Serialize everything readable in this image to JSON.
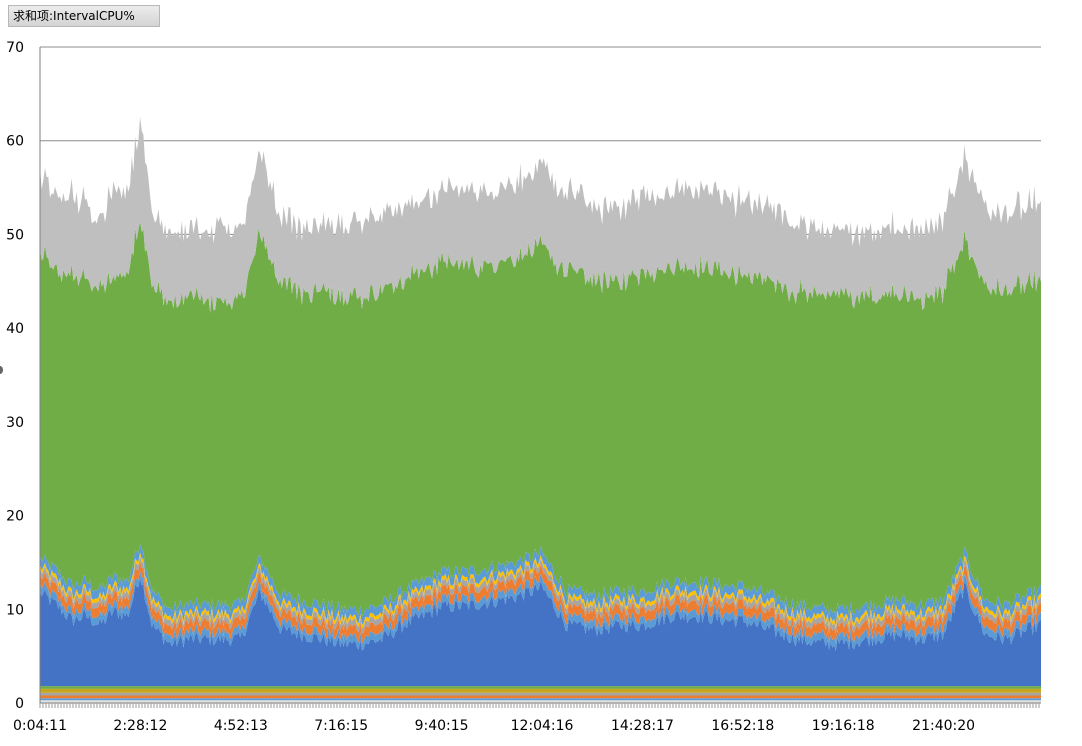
{
  "field_button": {
    "label": "求和项:IntervalCPU%"
  },
  "chart_data": {
    "type": "area",
    "stacked": true,
    "ylim": [
      0,
      70
    ],
    "y_ticks": [
      0,
      10,
      20,
      30,
      40,
      50,
      60,
      70
    ],
    "x_tick_labels": [
      "0:04:11",
      "2:28:12",
      "4:52:13",
      "7:16:15",
      "9:40:15",
      "12:04:16",
      "14:28:17",
      "16:52:18",
      "19:16:18",
      "21:40:20"
    ],
    "grid": {
      "horizontal": true,
      "vertical": false
    },
    "legend": "none",
    "x_start": "0:04:11",
    "x_end": "24:00:00",
    "series": [
      {
        "color": "#E2E2E2",
        "x": [
          "0:04:11",
          "23:58:00"
        ],
        "values": [
          0.3,
          0.3
        ]
      },
      {
        "color": "#5B9BD5",
        "x": [
          "0:04:11",
          "23:58:00"
        ],
        "values": [
          0.2,
          0.2
        ]
      },
      {
        "color": "#ED7D31",
        "x": [
          "0:04:11",
          "23:58:00"
        ],
        "values": [
          0.3,
          0.3
        ]
      },
      {
        "color": "#A5A5A5",
        "x": [
          "0:04:11",
          "23:58:00"
        ],
        "values": [
          0.3,
          0.3
        ]
      },
      {
        "color": "#C8A51E",
        "x": [
          "0:04:11",
          "23:58:00"
        ],
        "values": [
          0.4,
          0.4
        ]
      },
      {
        "color": "#70AD47",
        "x": [
          "0:04:11",
          "23:58:00"
        ],
        "values": [
          0.3,
          0.3
        ]
      },
      {
        "color": "#4472C4",
        "x": [
          "0:04:11",
          "0:30:00",
          "0:50:00",
          "1:10:00",
          "1:30:00",
          "1:50:00",
          "2:10:00",
          "2:28:12",
          "2:45:00",
          "3:10:00",
          "3:35:00",
          "4:00:00",
          "4:25:00",
          "4:52:13",
          "5:20:00",
          "5:50:00",
          "6:20:00",
          "6:50:00",
          "7:16:15",
          "7:45:00",
          "8:15:00",
          "8:45:00",
          "9:15:00",
          "9:40:15",
          "10:15:00",
          "10:50:00",
          "11:25:00",
          "12:04:16",
          "12:40:00",
          "13:20:00",
          "14:00:00",
          "14:28:17",
          "15:10:00",
          "15:50:00",
          "16:30:00",
          "16:52:18",
          "17:30:00",
          "18:10:00",
          "18:50:00",
          "19:16:18",
          "19:55:00",
          "20:35:00",
          "21:10:00",
          "21:40:20",
          "22:10:00",
          "22:40:00",
          "23:10:00",
          "23:58:00"
        ],
        "values": [
          10.0,
          8.5,
          7.0,
          7.5,
          6.5,
          8.0,
          7.5,
          12.0,
          6.5,
          4.5,
          5.0,
          5.0,
          5.0,
          5.0,
          10.0,
          6.0,
          5.5,
          5.0,
          4.5,
          4.5,
          5.0,
          6.5,
          7.5,
          8.5,
          8.5,
          9.0,
          9.5,
          10.5,
          6.5,
          6.0,
          6.5,
          6.5,
          7.5,
          7.5,
          7.0,
          7.0,
          6.0,
          5.0,
          4.5,
          4.5,
          5.0,
          5.5,
          5.0,
          5.5,
          10.5,
          5.5,
          5.0,
          6.5
        ]
      },
      {
        "color": "#5B9BD5",
        "x": [
          "0:04:11",
          "23:58:00"
        ],
        "values": [
          0.8,
          0.8
        ]
      },
      {
        "color": "#ED7D31",
        "x": [
          "0:04:11",
          "23:58:00"
        ],
        "values": [
          1.0,
          1.0
        ]
      },
      {
        "color": "#A5A5A5",
        "x": [
          "0:04:11",
          "23:58:00"
        ],
        "values": [
          0.6,
          0.6
        ]
      },
      {
        "color": "#FFC000",
        "x": [
          "0:04:11",
          "23:58:00"
        ],
        "values": [
          0.4,
          0.4
        ]
      },
      {
        "color": "#5B9BD5",
        "x": [
          "0:04:11",
          "23:58:00"
        ],
        "values": [
          0.9,
          0.9
        ]
      },
      {
        "color": "#70AD47",
        "x": [
          "0:04:11",
          "0:30:00",
          "0:50:00",
          "1:10:00",
          "1:30:00",
          "1:50:00",
          "2:10:00",
          "2:28:12",
          "2:45:00",
          "3:10:00",
          "3:35:00",
          "4:00:00",
          "4:25:00",
          "4:52:13",
          "5:20:00",
          "5:50:00",
          "6:20:00",
          "6:50:00",
          "7:16:15",
          "7:45:00",
          "8:15:00",
          "8:45:00",
          "9:15:00",
          "9:40:15",
          "10:15:00",
          "10:50:00",
          "11:25:00",
          "12:04:16",
          "12:40:00",
          "13:20:00",
          "14:00:00",
          "14:28:17",
          "15:10:00",
          "15:50:00",
          "16:30:00",
          "16:52:18",
          "17:30:00",
          "18:10:00",
          "18:50:00",
          "19:16:18",
          "19:55:00",
          "20:35:00",
          "21:10:00",
          "21:40:20",
          "22:10:00",
          "22:40:00",
          "23:10:00",
          "23:58:00"
        ],
        "values": [
          32.5,
          31.5,
          33.0,
          32.0,
          32.5,
          31.5,
          33.0,
          34.0,
          33.0,
          32.5,
          32.5,
          32.5,
          32.5,
          32.5,
          34.5,
          33.5,
          33.0,
          33.5,
          33.5,
          33.5,
          33.5,
          33.0,
          33.0,
          33.0,
          32.5,
          32.5,
          32.5,
          32.5,
          34.0,
          33.5,
          33.0,
          34.0,
          33.5,
          33.5,
          33.5,
          33.0,
          33.5,
          33.5,
          33.5,
          33.5,
          33.0,
          32.5,
          32.5,
          33.0,
          33.5,
          33.5,
          33.5,
          33.0
        ]
      },
      {
        "color": "#BFBFBF",
        "x": [
          "0:04:11",
          "0:30:00",
          "0:50:00",
          "1:10:00",
          "1:30:00",
          "1:50:00",
          "2:10:00",
          "2:28:12",
          "2:45:00",
          "3:10:00",
          "3:35:00",
          "4:00:00",
          "4:25:00",
          "4:52:13",
          "5:20:00",
          "5:50:00",
          "6:20:00",
          "6:50:00",
          "7:16:15",
          "7:45:00",
          "8:15:00",
          "8:45:00",
          "9:15:00",
          "9:40:15",
          "10:15:00",
          "10:50:00",
          "11:25:00",
          "12:04:16",
          "12:40:00",
          "13:20:00",
          "14:00:00",
          "14:28:17",
          "15:10:00",
          "15:50:00",
          "16:30:00",
          "16:52:18",
          "17:30:00",
          "18:10:00",
          "18:50:00",
          "19:16:18",
          "19:55:00",
          "20:35:00",
          "21:10:00",
          "21:40:20",
          "22:10:00",
          "22:40:00",
          "23:10:00",
          "23:58:00"
        ],
        "values": [
          8.0,
          8.0,
          8.5,
          8.0,
          7.5,
          9.5,
          9.0,
          10.5,
          8.0,
          7.5,
          7.0,
          7.0,
          8.0,
          7.5,
          9.0,
          7.0,
          7.0,
          7.0,
          7.5,
          8.0,
          8.0,
          8.0,
          7.5,
          7.5,
          8.0,
          8.0,
          8.0,
          8.5,
          8.5,
          8.0,
          8.0,
          8.5,
          8.0,
          8.5,
          8.0,
          8.0,
          8.0,
          7.5,
          7.0,
          6.5,
          7.0,
          7.0,
          7.5,
          7.5,
          9.0,
          8.5,
          8.5,
          8.0
        ]
      }
    ]
  }
}
